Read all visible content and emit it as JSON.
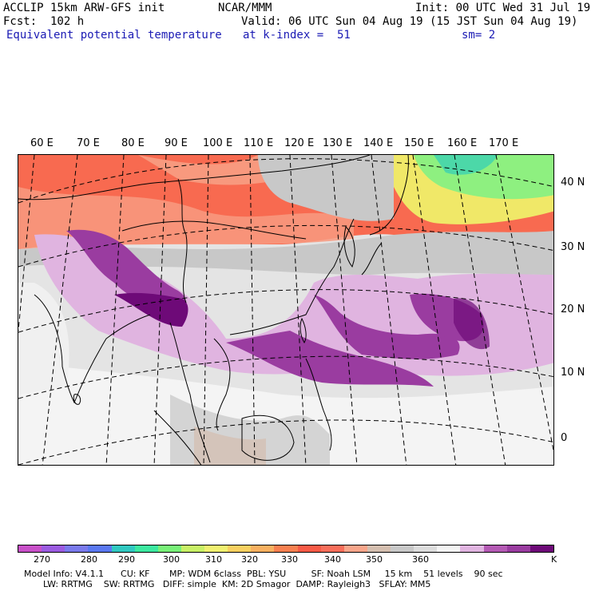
{
  "header": {
    "line1_left": "ACCLIP 15km ARW-GFS init",
    "line1_center": "NCAR/MMM",
    "line1_right": "Init: 00 UTC Wed 31 Jul 19",
    "line2_left": "Fcst:  102 h",
    "line2_right": "Valid: 06 UTC Sun 04 Aug 19 (15 JST Sun 04 Aug 19)",
    "line3_left": "Equivalent potential temperature",
    "line3_center": "at k-index =  51",
    "line3_right": "sm= 2"
  },
  "axes": {
    "longitudes": [
      "60 E",
      "70 E",
      "80 E",
      "90 E",
      "100 E",
      "110 E",
      "120 E",
      "130 E",
      "140 E",
      "150 E",
      "160 E",
      "170 E"
    ],
    "latitudes": [
      "40 N",
      "30 N",
      "20 N",
      "10 N",
      "0"
    ]
  },
  "colorbar": {
    "colors": [
      "#c850c8",
      "#9b5be0",
      "#7a7aec",
      "#5a78f0",
      "#30c8c0",
      "#3ce8a0",
      "#78f078",
      "#c8f066",
      "#f0f070",
      "#f8d060",
      "#f8b060",
      "#f88050",
      "#f85a46",
      "#f86e5a",
      "#f8a58a",
      "#d4beaf",
      "#c8c8c8",
      "#dcdcdc",
      "#f4f4f4",
      "#e0b4e0",
      "#b45ab4",
      "#9a3ca0",
      "#6e0a78"
    ],
    "labels": [
      "270",
      "280",
      "290",
      "300",
      "310",
      "320",
      "330",
      "340",
      "350",
      "360"
    ],
    "unit": "K"
  },
  "footer": {
    "line1": "Model Info: V4.1.1      CU: KF       MP: WDM 6class  PBL: YSU         SF: Noah LSM     15 km    51 levels    90 sec",
    "line2": "LW: RRTMG    SW: RRTMG   DIFF: simple  KM: 2D Smagor  DAMP: Rayleigh3   SFLAY: MM5"
  }
}
